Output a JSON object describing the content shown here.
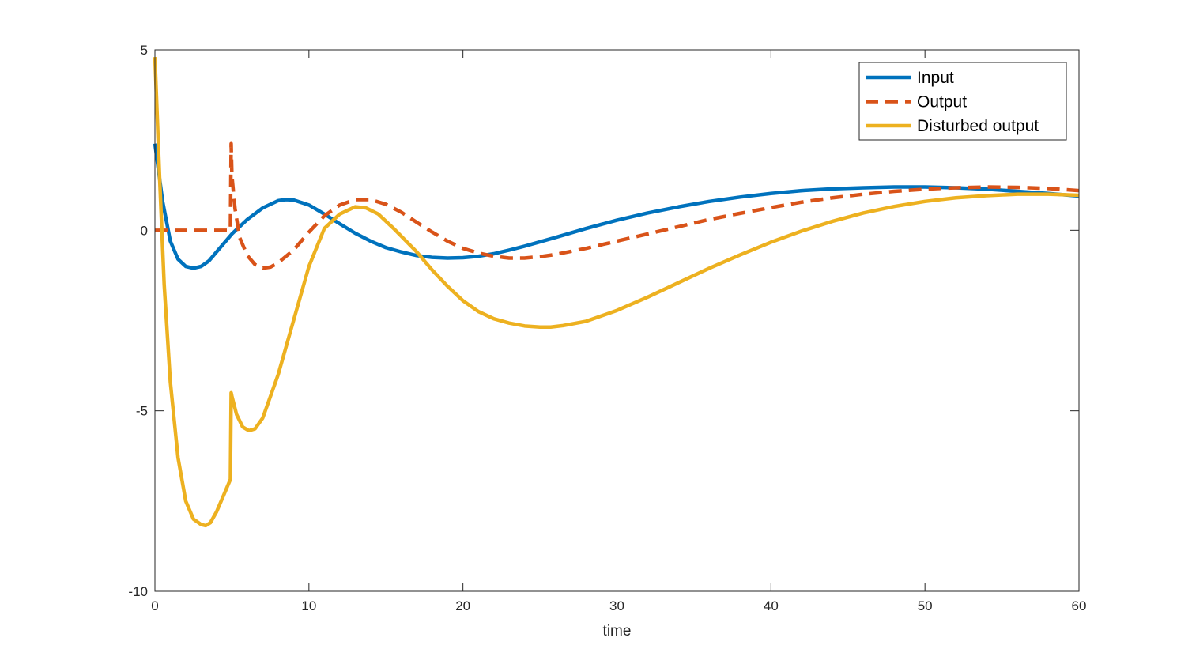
{
  "chart_data": {
    "type": "line",
    "title": "",
    "xlabel": "time",
    "ylabel": "",
    "xlim": [
      0,
      60
    ],
    "ylim": [
      -10,
      5
    ],
    "xticks": [
      "0",
      "10",
      "20",
      "30",
      "40",
      "50",
      "60"
    ],
    "yticks": [
      "-10",
      "-5",
      "0",
      "5"
    ],
    "grid": false,
    "legend_position": "top-right",
    "series": [
      {
        "name": "Input",
        "color": "#0072BD",
        "style": "solid",
        "x": [
          0,
          0.5,
          1,
          1.5,
          2,
          2.5,
          3,
          3.5,
          4,
          5,
          6,
          7,
          8,
          8.5,
          9,
          10,
          11,
          12,
          13,
          14,
          15,
          16,
          17,
          18,
          19,
          20,
          21,
          22,
          23,
          24,
          25,
          26,
          28,
          30,
          32,
          34,
          36,
          38,
          40,
          42,
          44,
          46,
          48,
          50,
          52,
          54,
          56,
          58,
          60
        ],
        "y": [
          2.4,
          0.8,
          -0.3,
          -0.8,
          -1.0,
          -1.05,
          -1.0,
          -0.85,
          -0.6,
          -0.1,
          0.3,
          0.62,
          0.82,
          0.85,
          0.84,
          0.7,
          0.45,
          0.18,
          -0.08,
          -0.3,
          -0.48,
          -0.6,
          -0.7,
          -0.75,
          -0.77,
          -0.76,
          -0.72,
          -0.65,
          -0.55,
          -0.44,
          -0.32,
          -0.2,
          0.05,
          0.28,
          0.48,
          0.65,
          0.8,
          0.92,
          1.02,
          1.1,
          1.15,
          1.18,
          1.2,
          1.2,
          1.18,
          1.14,
          1.08,
          1.02,
          0.95
        ]
      },
      {
        "name": "Output",
        "color": "#D95319",
        "style": "dashed",
        "x": [
          0,
          1,
          2,
          3,
          4,
          4.9,
          4.95,
          5.0,
          5.2,
          5.5,
          6,
          6.5,
          7,
          7.5,
          8,
          9,
          10,
          11,
          12,
          13,
          14,
          15,
          16,
          17,
          18,
          19,
          20,
          21,
          22,
          23,
          24,
          25,
          26,
          28,
          30,
          32,
          34,
          36,
          38,
          40,
          42,
          44,
          46,
          48,
          50,
          52,
          54,
          56,
          58,
          60
        ],
        "y": [
          0,
          0,
          0,
          0,
          0,
          0,
          2.4,
          1.5,
          0.6,
          -0.2,
          -0.7,
          -0.95,
          -1.05,
          -1.02,
          -0.9,
          -0.55,
          -0.05,
          0.4,
          0.7,
          0.85,
          0.85,
          0.72,
          0.5,
          0.22,
          -0.05,
          -0.3,
          -0.5,
          -0.63,
          -0.72,
          -0.77,
          -0.77,
          -0.73,
          -0.67,
          -0.5,
          -0.3,
          -0.1,
          0.1,
          0.3,
          0.47,
          0.63,
          0.78,
          0.9,
          1.0,
          1.08,
          1.14,
          1.18,
          1.2,
          1.19,
          1.16,
          1.1
        ]
      },
      {
        "name": "Disturbed output",
        "color": "#EDB120",
        "style": "solid",
        "x": [
          0,
          0.3,
          0.6,
          1,
          1.5,
          2,
          2.5,
          3,
          3.3,
          3.6,
          4,
          4.5,
          4.9,
          4.95,
          5.0,
          5.3,
          5.7,
          6.1,
          6.5,
          7,
          8,
          9,
          10,
          11,
          12,
          13,
          13.7,
          14.5,
          15.5,
          17,
          18,
          19,
          20,
          21,
          22,
          23,
          24,
          25,
          25.7,
          26.5,
          28,
          30,
          32,
          34,
          36,
          38,
          40,
          42,
          44,
          46,
          48,
          50,
          52,
          54,
          56,
          58,
          60
        ],
        "y": [
          4.8,
          1.5,
          -1.5,
          -4.2,
          -6.3,
          -7.5,
          -8.0,
          -8.15,
          -8.18,
          -8.1,
          -7.8,
          -7.3,
          -6.9,
          -4.5,
          -4.6,
          -5.1,
          -5.45,
          -5.55,
          -5.5,
          -5.2,
          -4.0,
          -2.5,
          -1.0,
          0.05,
          0.45,
          0.65,
          0.62,
          0.45,
          0.05,
          -0.6,
          -1.1,
          -1.55,
          -1.95,
          -2.25,
          -2.45,
          -2.57,
          -2.65,
          -2.68,
          -2.68,
          -2.64,
          -2.52,
          -2.22,
          -1.85,
          -1.45,
          -1.05,
          -0.68,
          -0.33,
          -0.02,
          0.25,
          0.48,
          0.66,
          0.8,
          0.9,
          0.96,
          1.0,
          1.0,
          0.97
        ]
      }
    ]
  }
}
